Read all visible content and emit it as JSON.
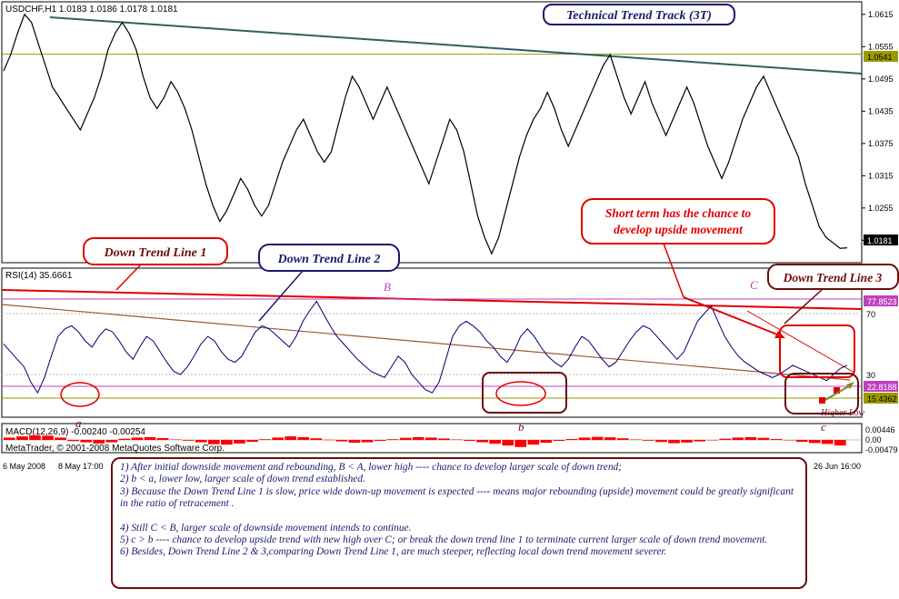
{
  "window": {
    "symbol_line": "USDCHF,H1  1.0183 1.0186 1.0178 1.0181",
    "title": "Technical Trend Track (3T)",
    "copyright": "MetaTrader, © 2001-2008 MetaQuotes Software Corp."
  },
  "colors": {
    "price": "#000000",
    "rsi": "#00006e",
    "trend_red": "#e00000",
    "olive_level": "#9a9a00",
    "dark_teal_line": "#2f5f5f",
    "magenta_level": "#c040c0",
    "dark_brown": "#6a0d0d",
    "navy": "#1a1a6e",
    "macd_hist": "#ff0000"
  },
  "chart_data": [
    {
      "type": "line",
      "panel": "price",
      "title": "USDCHF,H1",
      "ohlc_readout": {
        "open": 1.0183,
        "high": 1.0186,
        "low": 1.0178,
        "close": 1.0181
      },
      "ylim": [
        1.0155,
        1.0635
      ],
      "y_ticks": [
        "1.0615",
        "1.0555",
        "1.0495",
        "1.0435",
        "1.0375",
        "1.0315",
        "1.0255",
        "1.0195"
      ],
      "current_price_label": "1.0181",
      "level_label": "1.0541",
      "level_value": 1.0541,
      "x_labels": [
        "6 May 2008",
        "8 May 17:00",
        "26 Jun 16:00"
      ],
      "series": [
        {
          "values": [
            1.051,
            1.054,
            1.058,
            1.0615,
            1.06,
            1.056,
            1.052,
            1.048,
            1.046,
            1.044,
            1.042,
            1.04,
            1.043,
            1.046,
            1.05,
            1.055,
            1.058,
            1.06,
            1.058,
            1.055,
            1.05,
            1.046,
            1.044,
            1.046,
            1.049,
            1.047,
            1.044,
            1.04,
            1.035,
            1.03,
            1.026,
            1.023,
            1.025,
            1.028,
            1.031,
            1.029,
            1.026,
            1.024,
            1.026,
            1.03,
            1.034,
            1.037,
            1.04,
            1.042,
            1.039,
            1.036,
            1.034,
            1.036,
            1.041,
            1.046,
            1.05,
            1.048,
            1.045,
            1.042,
            1.045,
            1.048,
            1.045,
            1.042,
            1.039,
            1.036,
            1.033,
            1.03,
            1.034,
            1.038,
            1.042,
            1.04,
            1.036,
            1.03,
            1.024,
            1.02,
            1.017,
            1.02,
            1.025,
            1.03,
            1.035,
            1.039,
            1.042,
            1.044,
            1.047,
            1.044,
            1.04,
            1.037,
            1.04,
            1.043,
            1.046,
            1.049,
            1.052,
            1.054,
            1.05,
            1.046,
            1.043,
            1.046,
            1.049,
            1.045,
            1.042,
            1.039,
            1.042,
            1.045,
            1.048,
            1.045,
            1.041,
            1.037,
            1.034,
            1.031,
            1.034,
            1.038,
            1.042,
            1.045,
            1.048,
            1.05,
            1.047,
            1.044,
            1.041,
            1.038,
            1.035,
            1.03,
            1.026,
            1.022,
            1.02,
            1.019,
            1.018,
            1.0181
          ],
          "x_range": "6 May 2008 – 26 Jun 16:00"
        }
      ]
    },
    {
      "type": "line",
      "panel": "rsi",
      "title": "RSI(14) 35.6661",
      "ylim": [
        0,
        100
      ],
      "y_ticks": [
        "70",
        "30"
      ],
      "right_labels": [
        "77.8523",
        "22.8188",
        "15.4362"
      ],
      "series": [
        {
          "values": [
            50,
            45,
            40,
            35,
            25,
            18,
            28,
            42,
            55,
            60,
            62,
            58,
            52,
            48,
            55,
            60,
            58,
            52,
            45,
            40,
            48,
            55,
            52,
            45,
            38,
            32,
            30,
            35,
            42,
            50,
            55,
            52,
            45,
            40,
            38,
            42,
            50,
            58,
            62,
            60,
            56,
            52,
            48,
            55,
            65,
            72,
            78,
            70,
            62,
            55,
            50,
            45,
            40,
            36,
            32,
            30,
            28,
            35,
            42,
            38,
            30,
            25,
            20,
            18,
            25,
            40,
            55,
            62,
            65,
            62,
            58,
            52,
            48,
            42,
            38,
            45,
            55,
            60,
            55,
            48,
            42,
            38,
            35,
            40,
            48,
            55,
            52,
            46,
            40,
            35,
            38,
            45,
            52,
            58,
            62,
            60,
            55,
            50,
            45,
            40,
            45,
            55,
            65,
            70,
            75,
            65,
            55,
            48,
            42,
            38,
            35,
            32,
            30,
            28,
            30,
            33,
            36,
            34,
            32,
            30,
            28,
            26,
            30,
            34,
            36
          ],
          "x_range": "6 May 2008 – 26 Jun 16:00"
        }
      ]
    },
    {
      "type": "bar",
      "panel": "macd",
      "title": "MACD(12,26,9) -0.00240 -0.00254",
      "ylim": [
        -0.005,
        0.005
      ],
      "y_ticks": [
        "0.00446",
        "0.00",
        "-0.00479"
      ],
      "series": [
        {
          "name": "histogram",
          "values": [
            0.001,
            0.0015,
            0.002,
            0.0018,
            0.001,
            -0.0005,
            -0.001,
            -0.0015,
            -0.001,
            0.0005,
            0.001,
            0.0012,
            0.0008,
            0.0002,
            -0.0003,
            -0.001,
            -0.0018,
            -0.002,
            -0.0015,
            -0.0008,
            0.0003,
            0.001,
            0.0015,
            0.0012,
            0.0007,
            0.0001,
            -0.0006,
            -0.0012,
            -0.001,
            -0.0004,
            0.0003,
            0.0009,
            0.0012,
            0.001,
            0.0006,
            0.0002,
            -0.0004,
            -0.001,
            -0.0016,
            -0.0024,
            -0.003,
            -0.002,
            -0.0012,
            -0.0004,
            0.0004,
            0.001,
            0.0013,
            0.0011,
            0.0007,
            0.0002,
            -0.0003,
            -0.0009,
            -0.0014,
            -0.0011,
            -0.0006,
            -0.0001,
            0.0005,
            0.001,
            0.0012,
            0.0009,
            0.0004,
            -0.0002,
            -0.0008,
            -0.0013,
            -0.0017,
            -0.0024
          ]
        }
      ]
    }
  ],
  "annotations": {
    "dtl1": "Down Trend Line 1",
    "dtl2": "Down Trend Line 2",
    "dtl3": "Down Trend Line 3",
    "short_term_1": "Short term has the chance to",
    "short_term_2": "develop upside movement",
    "higher_low": "Higher Low",
    "letters": {
      "A": "a",
      "B": "B",
      "b": "b",
      "C": "C",
      "c": "c"
    }
  },
  "notes": [
    "1) After initial downside movement and rebounding, B < A, lower high  ---- chance to develop larger scale of down trend;",
    "2) b < a, lower low, larger scale of down trend established.",
    "3) Because the Down Trend Line 1 is slow, price wide down-up movement is expected ---- means major rebounding (upside) movement could be greatly significant in the ratio of retracement .",
    "4) Still C < B, larger scale of downside movement intends to continue.",
    "5)  c > b ---- chance to develop upside trend with new high over C; or break the down trend line 1 to terminate current larger scale of down trend movement.",
    "6) Besides, Down Trend Line 2 & 3,comparing Down Trend Line 1, are much steeper, reflecting local down trend movement severer."
  ]
}
